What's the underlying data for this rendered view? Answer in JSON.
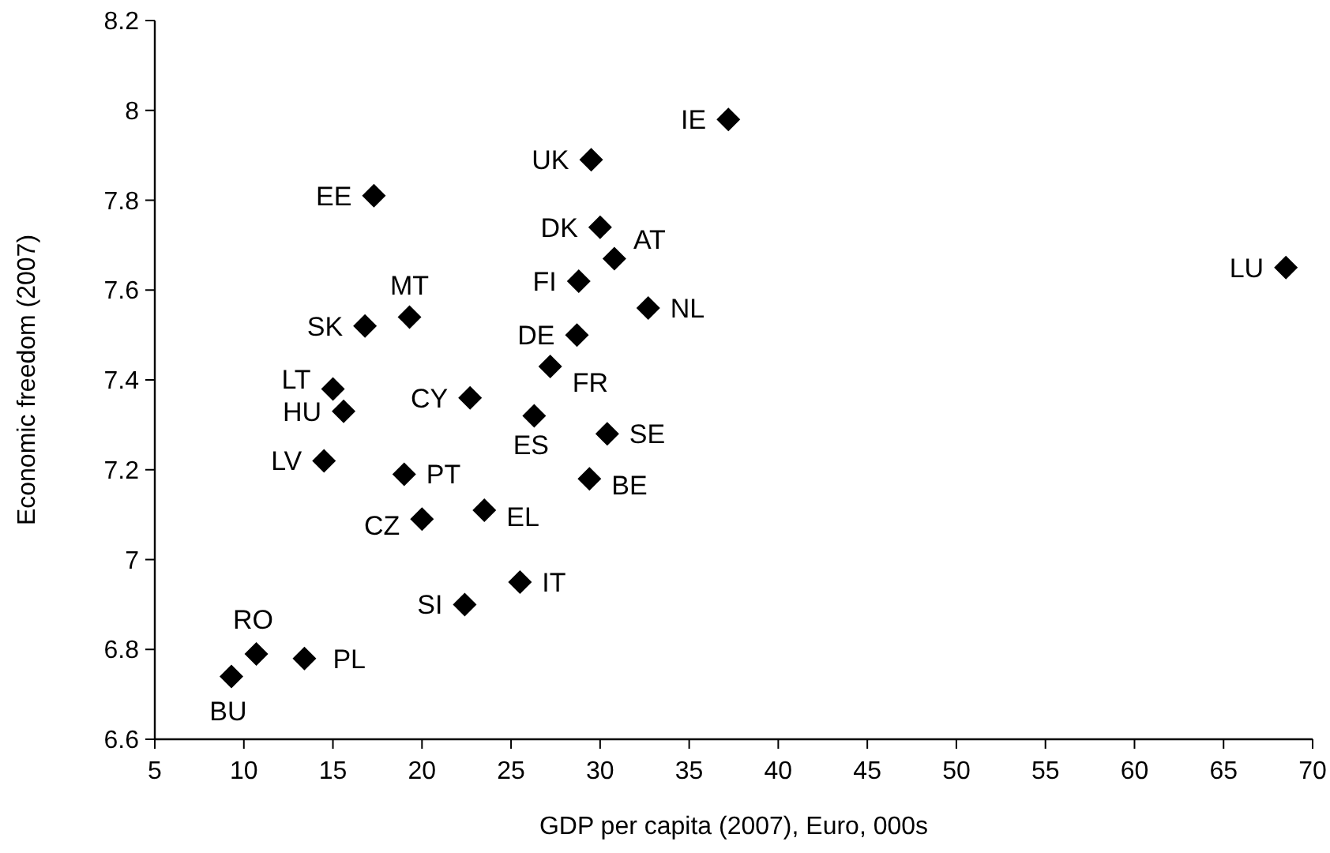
{
  "chart_data": {
    "type": "scatter",
    "xlabel": "GDP per capita (2007), Euro, 000s",
    "ylabel": "Economic freedom (2007)",
    "xlim": [
      5,
      70
    ],
    "xticks": [
      5,
      10,
      15,
      20,
      25,
      30,
      35,
      40,
      45,
      50,
      55,
      60,
      65,
      70
    ],
    "ylim": [
      6.6,
      8.2
    ],
    "yticks": [
      6.6,
      6.8,
      7,
      7.2,
      7.4,
      7.6,
      7.8,
      8,
      8.2
    ],
    "marker": "diamond",
    "series": [
      {
        "color": "#000000",
        "x": [
          37.2,
          29.5,
          17.3,
          30,
          30.8,
          28.8,
          68.5,
          32.7,
          19.3,
          16.8,
          28.7,
          27.2,
          15,
          22.7,
          15.6,
          26.3,
          30.4,
          14.5,
          19,
          29.4,
          23.5,
          20,
          25.5,
          22.4,
          10.7,
          13.4,
          9.3
        ],
        "values": [
          7.98,
          7.89,
          7.81,
          7.74,
          7.67,
          7.62,
          7.65,
          7.56,
          7.54,
          7.52,
          7.5,
          7.43,
          7.38,
          7.36,
          7.33,
          7.32,
          7.28,
          7.22,
          7.19,
          7.18,
          7.11,
          7.09,
          6.95,
          6.9,
          6.79,
          6.78,
          6.74
        ]
      }
    ],
    "annotations": [
      {
        "text": "IE",
        "x": 37.2,
        "y": 7.98
      },
      {
        "text": "UK",
        "x": 29.5,
        "y": 7.89
      },
      {
        "text": "EE",
        "x": 17.3,
        "y": 7.81
      },
      {
        "text": "DK",
        "x": 30,
        "y": 7.74
      },
      {
        "text": "AT",
        "x": 30.8,
        "y": 7.67
      },
      {
        "text": "FI",
        "x": 28.8,
        "y": 7.62
      },
      {
        "text": "LU",
        "x": 68.5,
        "y": 7.65
      },
      {
        "text": "NL",
        "x": 32.7,
        "y": 7.56
      },
      {
        "text": "MT",
        "x": 19.3,
        "y": 7.54
      },
      {
        "text": "SK",
        "x": 16.8,
        "y": 7.52
      },
      {
        "text": "DE",
        "x": 28.7,
        "y": 7.5
      },
      {
        "text": "FR",
        "x": 27.2,
        "y": 7.43
      },
      {
        "text": "LT",
        "x": 15,
        "y": 7.38
      },
      {
        "text": "CY",
        "x": 22.7,
        "y": 7.36
      },
      {
        "text": "HU",
        "x": 15.6,
        "y": 7.33
      },
      {
        "text": "ES",
        "x": 26.3,
        "y": 7.32
      },
      {
        "text": "SE",
        "x": 30.4,
        "y": 7.28
      },
      {
        "text": "LV",
        "x": 14.5,
        "y": 7.22
      },
      {
        "text": "PT",
        "x": 19,
        "y": 7.19
      },
      {
        "text": "BE",
        "x": 29.4,
        "y": 7.18
      },
      {
        "text": "EL",
        "x": 23.5,
        "y": 7.11
      },
      {
        "text": "CZ",
        "x": 20,
        "y": 7.09
      },
      {
        "text": "IT",
        "x": 25.5,
        "y": 6.95
      },
      {
        "text": "SI",
        "x": 22.4,
        "y": 6.9
      },
      {
        "text": "RO",
        "x": 10.7,
        "y": 6.79
      },
      {
        "text": "PL",
        "x": 13.4,
        "y": 6.78
      },
      {
        "text": "BU",
        "x": 9.3,
        "y": 6.74
      }
    ]
  }
}
